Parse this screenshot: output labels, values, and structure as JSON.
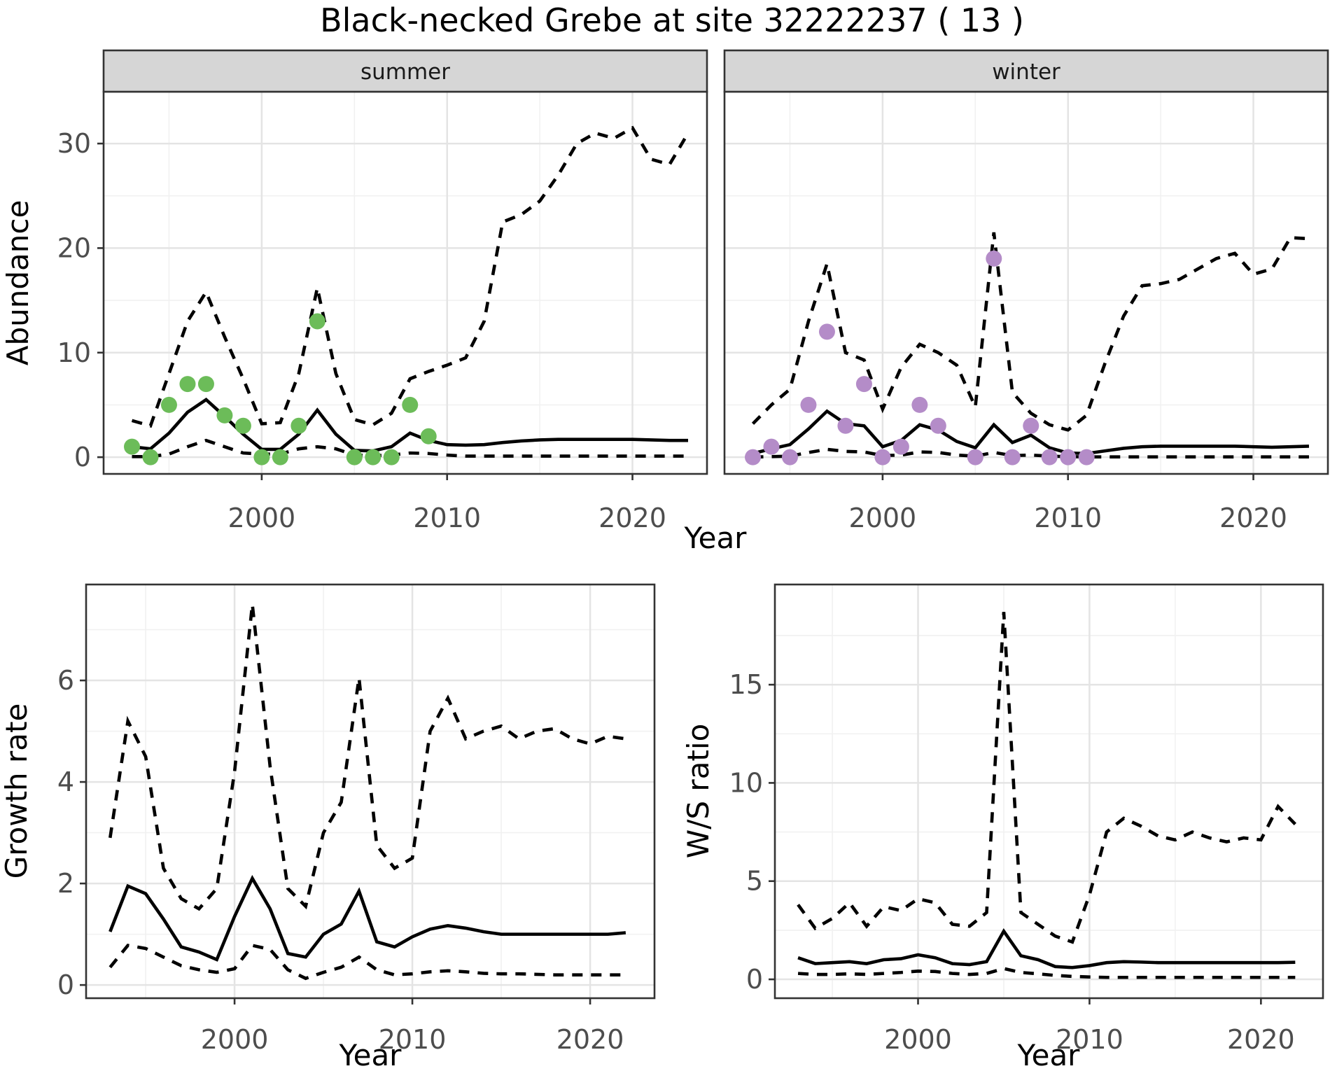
{
  "title": "Black-necked Grebe at site 32222237 ( 13 )",
  "colors": {
    "summer_points": "#6CBC59",
    "winter_points": "#B48CC8",
    "line": "#000000",
    "grid_major": "#E4E4E4",
    "grid_minor": "#F1F1F1",
    "strip_bg": "#D6D6D6",
    "panel_border": "#333333",
    "tick_label": "#4D4D4D",
    "axis_title": "#000000"
  },
  "chart_data": [
    {
      "type": "line",
      "name": "abundance-by-season",
      "xlabel": "Year",
      "ylabel": "Abundance",
      "x_ticks": [
        2000,
        2010,
        2020
      ],
      "x_minor": [
        1995,
        2005,
        2015
      ],
      "y_ticks": [
        0,
        10,
        20,
        30
      ],
      "y_minor": [
        5,
        15,
        25
      ],
      "xlim": [
        1991.47,
        2024.02
      ],
      "ylim": [
        -1.6,
        34.96
      ],
      "grid": true,
      "legend": "none",
      "line_styles": {
        "median": "solid",
        "upper": "dashed",
        "lower": "dashed"
      },
      "years": [
        1993,
        1994,
        1995,
        1996,
        1997,
        1998,
        1999,
        2000,
        2001,
        2002,
        2003,
        2004,
        2005,
        2006,
        2007,
        2008,
        2009,
        2010,
        2011,
        2012,
        2013,
        2014,
        2015,
        2016,
        2017,
        2018,
        2019,
        2020,
        2021,
        2022,
        2023
      ],
      "panels": [
        {
          "facet_label": "summer",
          "point_color": "#6CBC59",
          "median": [
            1.0,
            0.8,
            2.3,
            4.3,
            5.5,
            3.9,
            2.2,
            0.75,
            0.75,
            2.2,
            4.5,
            2.2,
            0.65,
            0.6,
            1.0,
            2.3,
            1.6,
            1.2,
            1.15,
            1.2,
            1.4,
            1.55,
            1.65,
            1.7,
            1.7,
            1.7,
            1.7,
            1.7,
            1.65,
            1.6,
            1.6
          ],
          "upper": [
            3.5,
            3.0,
            8.0,
            13.0,
            15.8,
            11.5,
            7.5,
            3.2,
            3.3,
            8.0,
            16.2,
            8.0,
            3.6,
            3.1,
            4.2,
            7.5,
            8.2,
            8.8,
            9.5,
            13.0,
            22.5,
            23.2,
            24.5,
            27.0,
            30.0,
            31.0,
            30.5,
            31.5,
            28.5,
            28.0,
            31.0
          ],
          "lower": [
            0.05,
            0.05,
            0.3,
            1.0,
            1.6,
            1.0,
            0.4,
            0.3,
            0.3,
            0.8,
            1.0,
            0.8,
            0.2,
            0.15,
            0.2,
            0.4,
            0.35,
            0.2,
            0.1,
            0.1,
            0.1,
            0.1,
            0.1,
            0.1,
            0.1,
            0.1,
            0.1,
            0.1,
            0.1,
            0.1,
            0.1
          ],
          "obs_years": [
            1993,
            1994,
            1995,
            1996,
            1997,
            1998,
            1999,
            2000,
            2001,
            2002,
            2003,
            2005,
            2006,
            2007,
            2008,
            2009
          ],
          "obs_values": [
            1,
            0,
            5,
            7,
            7,
            4,
            3,
            0,
            0,
            3,
            13,
            0,
            0,
            0,
            5,
            2
          ]
        },
        {
          "facet_label": "winter",
          "point_color": "#B48CC8",
          "median": [
            0.35,
            0.8,
            1.2,
            2.7,
            4.4,
            3.2,
            3.0,
            1.0,
            1.6,
            3.1,
            2.6,
            1.5,
            0.9,
            3.1,
            1.4,
            2.1,
            0.9,
            0.4,
            0.35,
            0.6,
            0.85,
            1.0,
            1.05,
            1.05,
            1.05,
            1.05,
            1.05,
            1.0,
            0.95,
            1.0,
            1.05
          ],
          "upper": [
            3.2,
            5.0,
            6.5,
            13.0,
            18.5,
            10.0,
            9.3,
            4.6,
            8.6,
            10.8,
            10.0,
            8.8,
            4.8,
            21.5,
            6.2,
            4.2,
            3.1,
            2.6,
            4.0,
            9.0,
            13.5,
            16.4,
            16.6,
            17.0,
            18.0,
            19.0,
            19.5,
            17.5,
            18.0,
            21.0,
            20.9
          ],
          "lower": [
            0.02,
            0.05,
            0.1,
            0.45,
            0.75,
            0.55,
            0.5,
            0.15,
            0.2,
            0.5,
            0.45,
            0.2,
            0.1,
            0.45,
            0.15,
            0.2,
            0.1,
            0.05,
            0.03,
            0.03,
            0.03,
            0.03,
            0.03,
            0.03,
            0.03,
            0.03,
            0.03,
            0.03,
            0.03,
            0.03,
            0.03
          ],
          "obs_years": [
            1993,
            1994,
            1995,
            1996,
            1997,
            1998,
            1999,
            2000,
            2001,
            2002,
            2003,
            2005,
            2006,
            2007,
            2008,
            2009,
            2010,
            2011
          ],
          "obs_values": [
            0,
            1,
            0,
            5,
            12,
            3,
            7,
            0,
            1,
            5,
            3,
            0,
            19,
            0,
            3,
            0,
            0,
            0
          ]
        }
      ]
    },
    {
      "type": "line",
      "name": "growth-rate",
      "xlabel": "Year",
      "ylabel": "Growth rate",
      "x_ticks": [
        2000,
        2010,
        2020
      ],
      "x_minor": [
        1995,
        2005,
        2015
      ],
      "y_ticks": [
        0,
        2,
        4,
        6
      ],
      "y_minor": [
        1,
        3,
        5,
        7
      ],
      "xlim": [
        1991.65,
        2023.62
      ],
      "ylim": [
        -0.26,
        7.89
      ],
      "grid": true,
      "legend": "none",
      "line_styles": {
        "median": "solid",
        "upper": "dashed",
        "lower": "dashed"
      },
      "years": [
        1993,
        1994,
        1995,
        1996,
        1997,
        1998,
        1999,
        2000,
        2001,
        2002,
        2003,
        2004,
        2005,
        2006,
        2007,
        2008,
        2009,
        2010,
        2011,
        2012,
        2013,
        2014,
        2015,
        2016,
        2017,
        2018,
        2019,
        2020,
        2021,
        2022
      ],
      "panels": [
        {
          "facet_label": "",
          "point_color": null,
          "median": [
            1.05,
            1.95,
            1.8,
            1.3,
            0.75,
            0.65,
            0.5,
            1.35,
            2.1,
            1.5,
            0.62,
            0.55,
            1.0,
            1.2,
            1.85,
            0.85,
            0.75,
            0.95,
            1.1,
            1.17,
            1.12,
            1.05,
            1.0,
            1.0,
            1.0,
            1.0,
            1.0,
            1.0,
            1.0,
            1.03
          ],
          "upper": [
            2.9,
            5.2,
            4.5,
            2.3,
            1.7,
            1.5,
            1.9,
            4.2,
            7.5,
            4.3,
            1.9,
            1.55,
            3.0,
            3.6,
            6.05,
            2.75,
            2.3,
            2.5,
            5.0,
            5.65,
            4.85,
            5.0,
            5.1,
            4.85,
            5.0,
            5.05,
            4.85,
            4.75,
            4.9,
            4.85
          ],
          "lower": [
            0.35,
            0.78,
            0.72,
            0.55,
            0.38,
            0.3,
            0.25,
            0.32,
            0.78,
            0.7,
            0.3,
            0.13,
            0.25,
            0.35,
            0.55,
            0.3,
            0.2,
            0.22,
            0.26,
            0.28,
            0.26,
            0.23,
            0.22,
            0.22,
            0.21,
            0.2,
            0.2,
            0.2,
            0.2,
            0.2
          ],
          "obs_years": [],
          "obs_values": []
        }
      ]
    },
    {
      "type": "line",
      "name": "ws-ratio",
      "xlabel": "Year",
      "ylabel": "W/S ratio",
      "x_ticks": [
        2000,
        2010,
        2020
      ],
      "x_minor": [
        1995,
        2005,
        2015
      ],
      "y_ticks": [
        0,
        5,
        10,
        15
      ],
      "y_minor": [
        2.5,
        7.5,
        12.5,
        17.5
      ],
      "xlim": [
        1991.65,
        2023.62
      ],
      "ylim": [
        -0.96,
        20.1
      ],
      "grid": true,
      "legend": "none",
      "line_styles": {
        "median": "solid",
        "upper": "dashed",
        "lower": "dashed"
      },
      "years": [
        1993,
        1994,
        1995,
        1996,
        1997,
        1998,
        1999,
        2000,
        2001,
        2002,
        2003,
        2004,
        2005,
        2006,
        2007,
        2008,
        2009,
        2010,
        2011,
        2012,
        2013,
        2014,
        2015,
        2016,
        2017,
        2018,
        2019,
        2020,
        2021,
        2022
      ],
      "panels": [
        {
          "facet_label": "",
          "point_color": null,
          "median": [
            1.1,
            0.8,
            0.85,
            0.9,
            0.8,
            1.0,
            1.05,
            1.25,
            1.1,
            0.8,
            0.75,
            0.9,
            2.45,
            1.2,
            1.0,
            0.65,
            0.6,
            0.7,
            0.85,
            0.9,
            0.88,
            0.85,
            0.85,
            0.85,
            0.85,
            0.85,
            0.85,
            0.85,
            0.85,
            0.87
          ],
          "upper": [
            3.8,
            2.6,
            3.1,
            3.9,
            2.7,
            3.7,
            3.5,
            4.1,
            3.9,
            2.8,
            2.7,
            3.4,
            18.7,
            3.4,
            2.8,
            2.2,
            1.9,
            4.3,
            7.5,
            8.2,
            7.8,
            7.3,
            7.1,
            7.5,
            7.2,
            7.0,
            7.2,
            7.1,
            8.8,
            7.9
          ],
          "lower": [
            0.3,
            0.25,
            0.25,
            0.28,
            0.25,
            0.3,
            0.35,
            0.42,
            0.4,
            0.3,
            0.25,
            0.3,
            0.55,
            0.35,
            0.28,
            0.2,
            0.15,
            0.12,
            0.1,
            0.1,
            0.1,
            0.1,
            0.1,
            0.1,
            0.1,
            0.1,
            0.1,
            0.1,
            0.1,
            0.1
          ],
          "obs_years": [],
          "obs_values": []
        }
      ]
    }
  ]
}
